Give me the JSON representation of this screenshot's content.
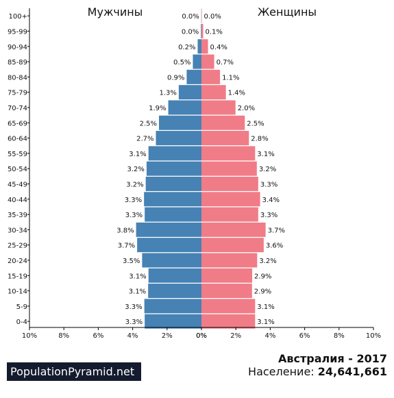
{
  "colors": {
    "male": "#4682b4",
    "female": "#f07c87",
    "brand_bg": "#141b2e"
  },
  "chart_data": {
    "type": "bar",
    "orientation": "horizontal-pyramid",
    "left_label": "Мужчины",
    "right_label": "Женщины",
    "categories": [
      "100+",
      "95-99",
      "90-94",
      "85-89",
      "80-84",
      "75-79",
      "70-74",
      "65-69",
      "60-64",
      "55-59",
      "50-54",
      "45-49",
      "40-44",
      "35-39",
      "30-34",
      "25-29",
      "20-24",
      "15-19",
      "10-14",
      "5-9",
      "0-4"
    ],
    "series": [
      {
        "name": "Мужчины",
        "side": "left",
        "values": [
          0.01,
          0.03,
          0.22,
          0.5,
          0.86,
          1.32,
          1.93,
          2.47,
          2.65,
          3.08,
          3.19,
          3.24,
          3.34,
          3.3,
          3.8,
          3.74,
          3.45,
          3.08,
          3.1,
          3.32,
          3.3
        ],
        "labels": [
          "0.0%",
          "0.0%",
          "0.2%",
          "0.5%",
          "0.9%",
          "1.3%",
          "1.9%",
          "2.5%",
          "2.7%",
          "3.1%",
          "3.2%",
          "3.2%",
          "3.3%",
          "3.3%",
          "3.8%",
          "3.7%",
          "3.5%",
          "3.1%",
          "3.1%",
          "3.3%",
          "3.3%"
        ]
      },
      {
        "name": "Женщины",
        "side": "right",
        "values": [
          0.02,
          0.1,
          0.38,
          0.74,
          1.08,
          1.42,
          1.98,
          2.52,
          2.76,
          3.12,
          3.22,
          3.3,
          3.41,
          3.3,
          3.73,
          3.62,
          3.24,
          2.95,
          2.94,
          3.12,
          3.12
        ],
        "labels": [
          "0.0%",
          "0.1%",
          "0.4%",
          "0.7%",
          "1.1%",
          "1.4%",
          "2.0%",
          "2.5%",
          "2.8%",
          "3.1%",
          "3.2%",
          "3.3%",
          "3.4%",
          "3.3%",
          "3.7%",
          "3.6%",
          "3.2%",
          "2.9%",
          "2.9%",
          "3.1%",
          "3.1%"
        ]
      }
    ],
    "x_ticks_left": [
      "10%",
      "8%",
      "6%",
      "4%",
      "2%",
      "0%"
    ],
    "x_ticks_right": [
      "0%",
      "2%",
      "4%",
      "6%",
      "8%",
      "10%"
    ],
    "xlim": [
      0,
      10
    ],
    "grid": false
  },
  "footer": {
    "brand": "PopulationPyramid.net",
    "country_year": "Австралия - 2017",
    "population_label": "Население:",
    "population_value": "24,641,661"
  }
}
